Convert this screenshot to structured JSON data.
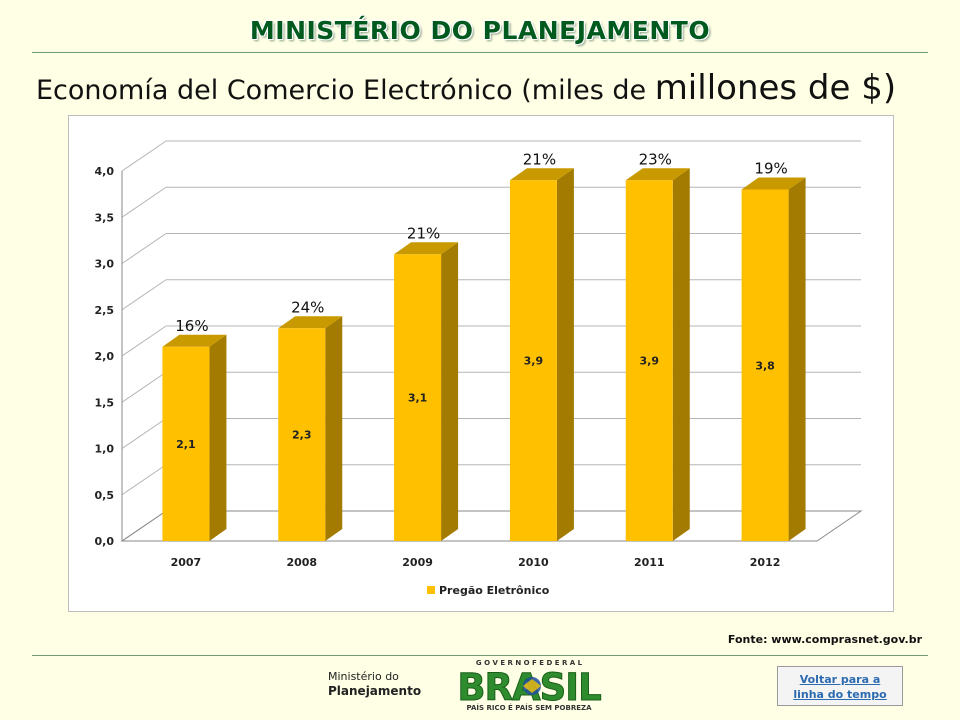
{
  "header": {
    "ministry_title": "MINISTÉRIO DO PLANEJAMENTO",
    "subtitle_main": "Economía del Comercio Electrónico (miles de ",
    "subtitle_big": "millones de $)"
  },
  "colors": {
    "header_green": "#005a1e",
    "bar_front": "#ffc000",
    "bar_side": "#a27b00",
    "bar_top": "#c99a00",
    "background": "#ffffe5"
  },
  "chart_data": {
    "type": "bar",
    "categories": [
      "2007",
      "2008",
      "2009",
      "2010",
      "2011",
      "2012"
    ],
    "values": [
      2.1,
      2.3,
      3.1,
      3.9,
      3.9,
      3.8
    ],
    "value_labels": [
      "2,1",
      "2,3",
      "3,1",
      "3,9",
      "3,9",
      "3,8"
    ],
    "growth_labels": [
      "16%",
      "24%",
      "21%",
      "21%",
      "23%",
      "19%"
    ],
    "series": [
      {
        "name": "Pregão Eletrônico",
        "values": [
          2.1,
          2.3,
          3.1,
          3.9,
          3.9,
          3.8
        ]
      }
    ],
    "ylim": [
      0,
      4.0
    ],
    "y_ticks": [
      0,
      0.5,
      1.0,
      1.5,
      2.0,
      2.5,
      3.0,
      3.5,
      4.0
    ],
    "y_tick_labels": [
      "0,0",
      "0,5",
      "1,0",
      "1,5",
      "2,0",
      "2,5",
      "3,0",
      "3,5",
      "4,0"
    ],
    "grid": true,
    "legend_position": "bottom",
    "style": "3d"
  },
  "source": "Fonte: www.comprasnet.gov.br",
  "footer": {
    "ministry_line1": "Ministério do",
    "ministry_line2": "Planejamento",
    "gov_federal": "G O V E R N O   F E D E R A L",
    "brasil": "BRASIL",
    "slogan": "PAÍS RICO É PAÍS SEM POBREZA",
    "back_line1": "Voltar para a",
    "back_line2": "linha do tempo"
  }
}
